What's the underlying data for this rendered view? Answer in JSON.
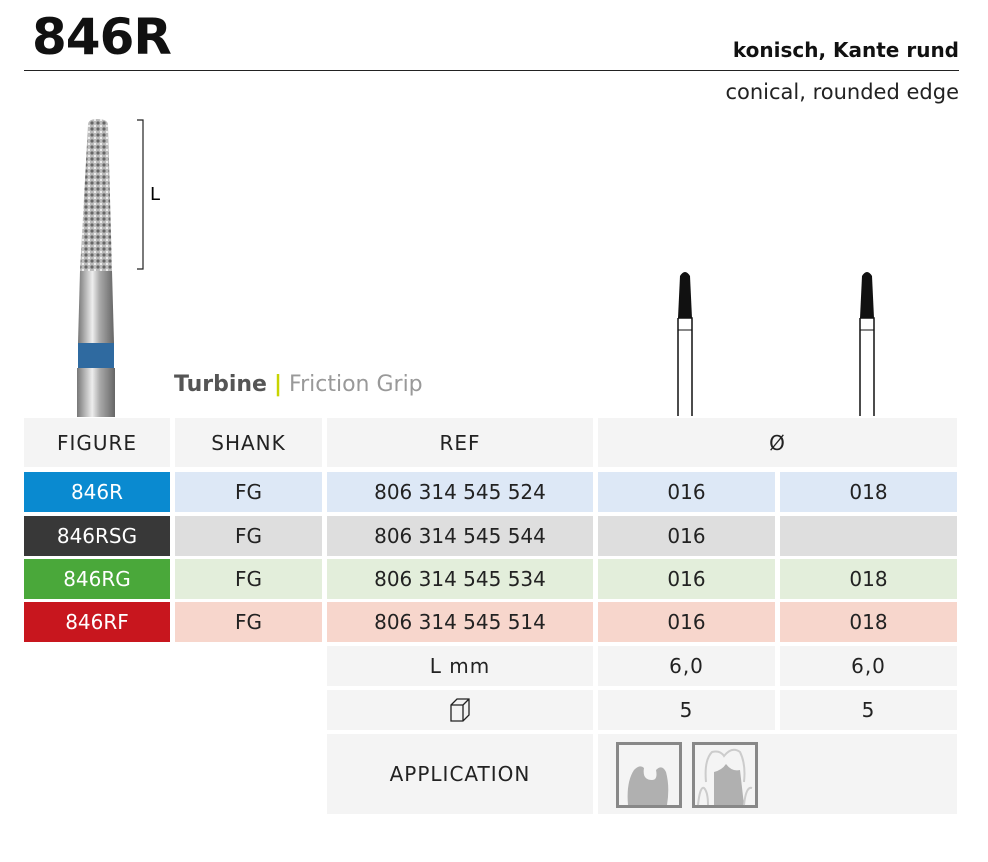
{
  "header": {
    "title": "846R",
    "subtitle_de": "konisch, Kante rund",
    "subtitle_en": "conical, rounded edge"
  },
  "diagram": {
    "length_label": "L"
  },
  "grip": {
    "turbine": "Turbine",
    "separator": "|",
    "friction": "Friction Grip"
  },
  "table": {
    "headers": {
      "figure": "FIGURE",
      "shank": "SHANK",
      "ref": "REF",
      "diameter": "Ø"
    },
    "rows": [
      {
        "figure": "846R",
        "shank": "FG",
        "ref": "806 314 545 524",
        "d1": "016",
        "d2": "018",
        "color": "#0a8ad0",
        "bg": "#dde8f6"
      },
      {
        "figure": "846RSG",
        "shank": "FG",
        "ref": "806 314 545 544",
        "d1": "016",
        "d2": "",
        "color": "#383838",
        "bg": "#dedede"
      },
      {
        "figure": "846RG",
        "shank": "FG",
        "ref": "806 314 545 534",
        "d1": "016",
        "d2": "018",
        "color": "#4aa83a",
        "bg": "#e3eedb"
      },
      {
        "figure": "846RF",
        "shank": "FG",
        "ref": "806 314 545 514",
        "d1": "016",
        "d2": "018",
        "color": "#c8161e",
        "bg": "#f7d6cc"
      }
    ],
    "length": {
      "label": "L mm",
      "d1": "6,0",
      "d2": "6,0"
    },
    "pack": {
      "d1": "5",
      "d2": "5"
    },
    "application": {
      "label": "APPLICATION",
      "icons": [
        "cavity-prep-icon",
        "crown-prep-icon"
      ]
    }
  }
}
